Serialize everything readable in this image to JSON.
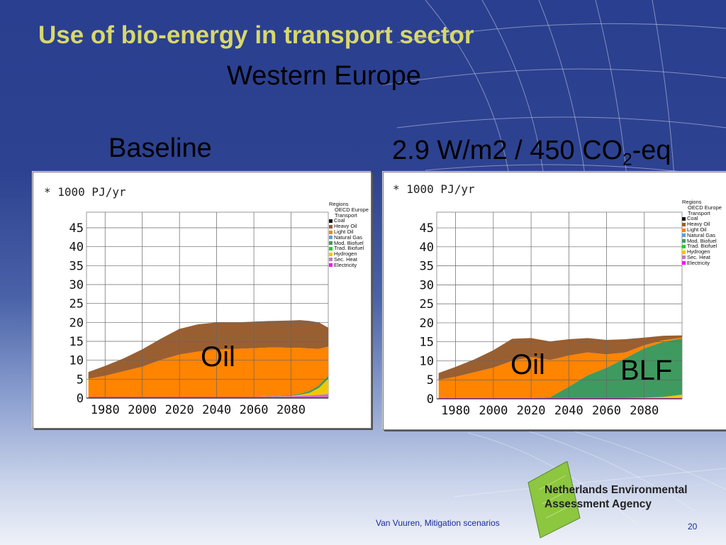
{
  "slide": {
    "title": "Use of bio-energy in transport sector",
    "subtitle": "Western Europe",
    "footer": "Van Vuuren, Mitigation scenarios",
    "page_number": "20",
    "logo_line1": "Netherlands Environmental",
    "logo_line2": "Assessment Agency",
    "colors": {
      "title": "#d8d86a",
      "background_top": "#2a3f8f",
      "footer_text": "#1a2a9a"
    }
  },
  "legend": {
    "title": "Regions",
    "region": "OECD Europe",
    "sector": "Transport",
    "items": [
      {
        "name": "Coal",
        "color": "#111111"
      },
      {
        "name": "Heavy Oil",
        "color": "#9a5f31"
      },
      {
        "name": "Light Oil",
        "color": "#ff8400"
      },
      {
        "name": "Natural Gas",
        "color": "#5aa0d8"
      },
      {
        "name": "Mod. Biofuel",
        "color": "#3f9a60"
      },
      {
        "name": "Trad. Biofuel",
        "color": "#22d022"
      },
      {
        "name": "Hydrogen",
        "color": "#f0c800"
      },
      {
        "name": "Sec. Heat",
        "color": "#c07ac0"
      },
      {
        "name": "Electricity",
        "color": "#ff00ff"
      }
    ]
  },
  "chart_data": [
    {
      "type": "area",
      "title": "Baseline",
      "unit_label": "* 1000 PJ/yr",
      "overlay_labels": [
        "Oil"
      ],
      "xlim": [
        1970,
        2100
      ],
      "ylim": [
        0,
        48
      ],
      "x_ticks": [
        1980,
        2000,
        2020,
        2040,
        2060,
        2080
      ],
      "y_ticks": [
        0,
        5,
        10,
        15,
        20,
        25,
        30,
        35,
        40,
        45
      ],
      "x": [
        1971,
        1980,
        1990,
        2000,
        2010,
        2020,
        2030,
        2040,
        2050,
        2060,
        2070,
        2080,
        2085,
        2090,
        2095,
        2100
      ],
      "series": [
        {
          "name": "Electricity",
          "values": [
            0.3,
            0.3,
            0.3,
            0.3,
            0.3,
            0.3,
            0.3,
            0.3,
            0.3,
            0.3,
            0.3,
            0.3,
            0.3,
            0.3,
            0.3,
            0.3
          ]
        },
        {
          "name": "Sec. Heat",
          "values": [
            0,
            0,
            0,
            0,
            0,
            0,
            0,
            0,
            0,
            0,
            0.1,
            0.2,
            0.3,
            0.4,
            0.6,
            0.8
          ]
        },
        {
          "name": "Hydrogen",
          "values": [
            0,
            0,
            0,
            0,
            0,
            0,
            0,
            0,
            0,
            0,
            0,
            0.1,
            0.3,
            0.7,
            1.8,
            4.0
          ]
        },
        {
          "name": "Mod. Biofuel",
          "values": [
            0,
            0,
            0,
            0,
            0,
            0,
            0,
            0,
            0,
            0,
            0.1,
            0.2,
            0.3,
            0.5,
            0.7,
            0.8
          ]
        },
        {
          "name": "Light Oil",
          "values": [
            4.8,
            5.6,
            6.8,
            8.0,
            9.8,
            11.2,
            12.0,
            12.5,
            12.7,
            12.9,
            12.9,
            12.5,
            12.1,
            11.2,
            9.6,
            7.7
          ]
        },
        {
          "name": "Heavy Oil",
          "values": [
            1.8,
            2.6,
            3.4,
            4.6,
            5.6,
            6.8,
            7.2,
            7.2,
            7.0,
            7.0,
            7.0,
            7.2,
            7.3,
            7.3,
            7.0,
            5.0
          ]
        }
      ]
    },
    {
      "type": "area",
      "title": "2.9 W/m2 / 450 CO2-eq",
      "unit_label": "* 1000 PJ/yr",
      "overlay_labels": [
        "Oil",
        "BLF"
      ],
      "xlim": [
        1970,
        2100
      ],
      "ylim": [
        0,
        48
      ],
      "x_ticks": [
        1980,
        2000,
        2020,
        2040,
        2060,
        2080
      ],
      "y_ticks": [
        0,
        5,
        10,
        15,
        20,
        25,
        30,
        35,
        40,
        45
      ],
      "x": [
        1971,
        1980,
        1990,
        2000,
        2010,
        2020,
        2030,
        2040,
        2050,
        2060,
        2070,
        2080,
        2090,
        2100
      ],
      "series": [
        {
          "name": "Electricity",
          "values": [
            0.2,
            0.2,
            0.2,
            0.2,
            0.2,
            0.2,
            0.2,
            0.2,
            0.2,
            0.2,
            0.2,
            0.2,
            0.2,
            0.2
          ]
        },
        {
          "name": "Hydrogen",
          "values": [
            0,
            0,
            0,
            0,
            0,
            0,
            0,
            0,
            0,
            0,
            0,
            0.1,
            0.3,
            0.9
          ]
        },
        {
          "name": "Mod. Biofuel",
          "values": [
            0,
            0,
            0,
            0,
            0,
            0,
            0.2,
            3.0,
            6.0,
            8.0,
            10.5,
            13.0,
            14.5,
            14.8
          ]
        },
        {
          "name": "Light Oil",
          "values": [
            4.8,
            5.6,
            6.8,
            8.0,
            9.8,
            10.8,
            9.8,
            8.2,
            6.0,
            3.5,
            1.5,
            0.8,
            0.4,
            0.2
          ]
        },
        {
          "name": "Heavy Oil",
          "values": [
            1.8,
            2.6,
            3.4,
            4.6,
            5.8,
            5.0,
            4.9,
            4.3,
            3.8,
            3.8,
            3.5,
            2.0,
            1.2,
            0.6
          ]
        }
      ]
    }
  ]
}
